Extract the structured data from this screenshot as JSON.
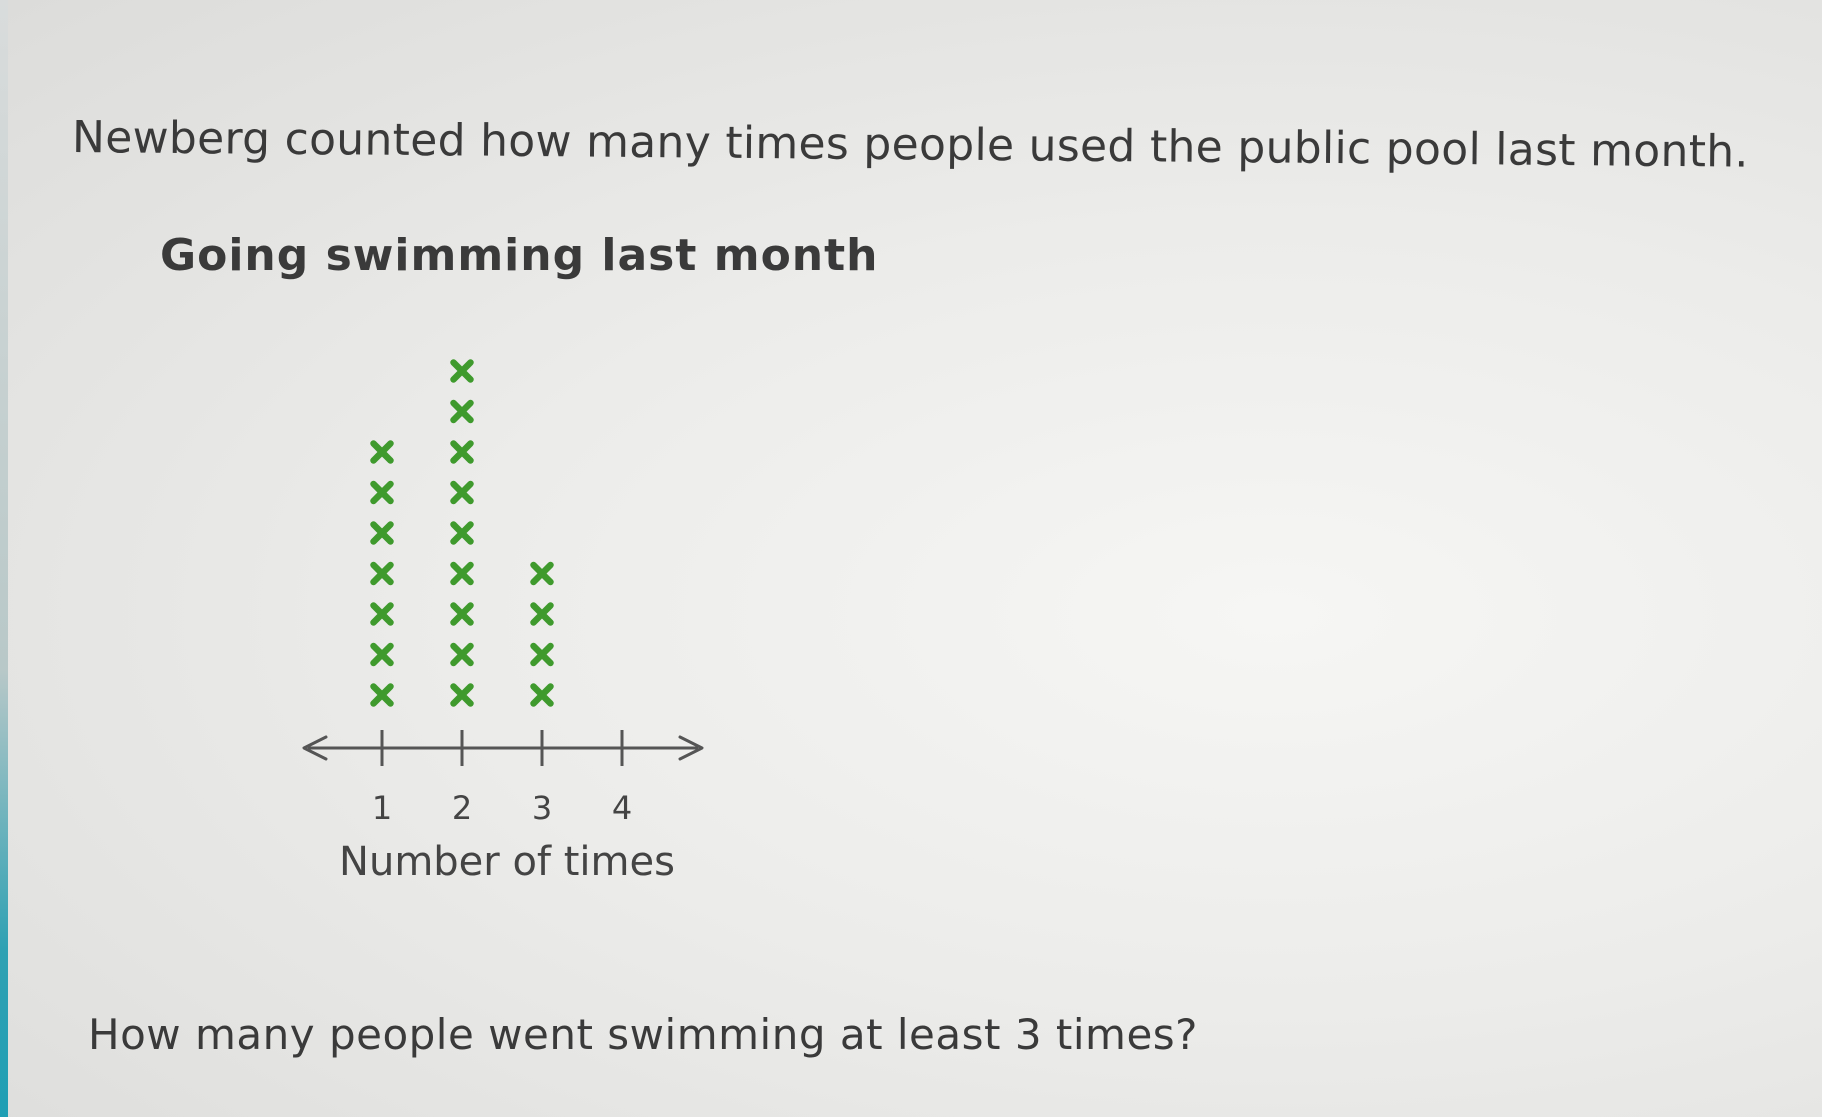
{
  "question_intro": "Newberg counted how many times people used the public pool last month.",
  "question": "How many people went swimming at least 3 times?",
  "chart_data": {
    "type": "dot-plot",
    "title": "Going swimming last month",
    "xlabel": "Number of times",
    "ylabel": "",
    "categories": [
      "1",
      "2",
      "3",
      "4"
    ],
    "values": [
      7,
      9,
      4,
      0
    ],
    "marker": "x",
    "marker_color": "#3f9a2d",
    "axis_color": "#555555"
  }
}
